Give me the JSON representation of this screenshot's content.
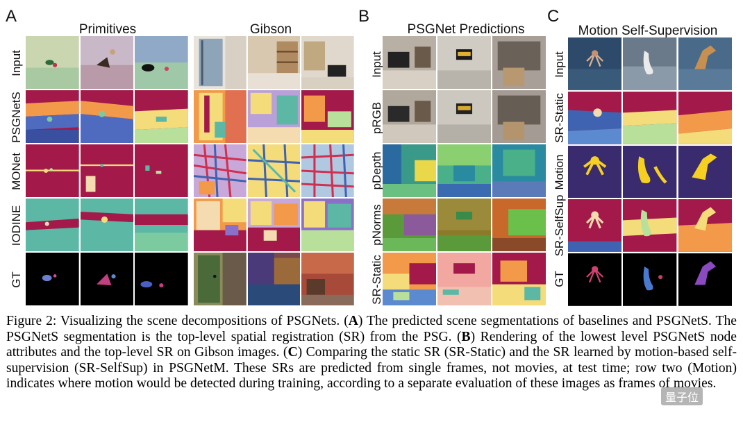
{
  "panels": {
    "A": {
      "letter": "A",
      "headings": [
        "Primitives",
        "Gibson"
      ],
      "rows": [
        "Input",
        "PSGNetS",
        "MONet",
        "IODINE",
        "GT"
      ]
    },
    "B": {
      "letter": "B",
      "heading": "PSGNet Predictions",
      "rows": [
        "Input",
        "pRGB",
        "pDepth",
        "pNorms",
        "SR-Static"
      ]
    },
    "C": {
      "letter": "C",
      "heading": "Motion Self-Supervision",
      "rows": [
        "Input",
        "SR-Static",
        "Motion",
        "SR-SelfSup",
        "GT"
      ]
    }
  },
  "caption": {
    "lead": "Figure 2: Visualizing the scene decompositions of PSGNets. (",
    "a": "A",
    "t1": ") The predicted scene segmentations of baselines and PSGNetS. The PSGNetS segmentation is the top-level spatial registration (SR) from the PSG. (",
    "b": "B",
    "t2": ") Rendering of the lowest level PSGNetS node attributes and the top-level SR on Gibson images. (",
    "c": "C",
    "t3": ") Comparing the static SR (SR-Static) and the SR learned by motion-based self-supervision (SR-SelfSup) in PSGNetM. These SRs are predicted from single frames, not movies, at test time; row two (Motion) indicates where motion would be detected during training, according to a separate evaluation of these images as frames of movies."
  },
  "watermark": "量子位",
  "colors": {
    "magenta": "#a3194a",
    "orange": "#f2994a",
    "yellow": "#f5dc7a",
    "lightgreen": "#b9e09a",
    "teal": "#5cb8a5",
    "blue": "#3f63b0",
    "navy": "#3a2a6e",
    "black": "#000000"
  }
}
